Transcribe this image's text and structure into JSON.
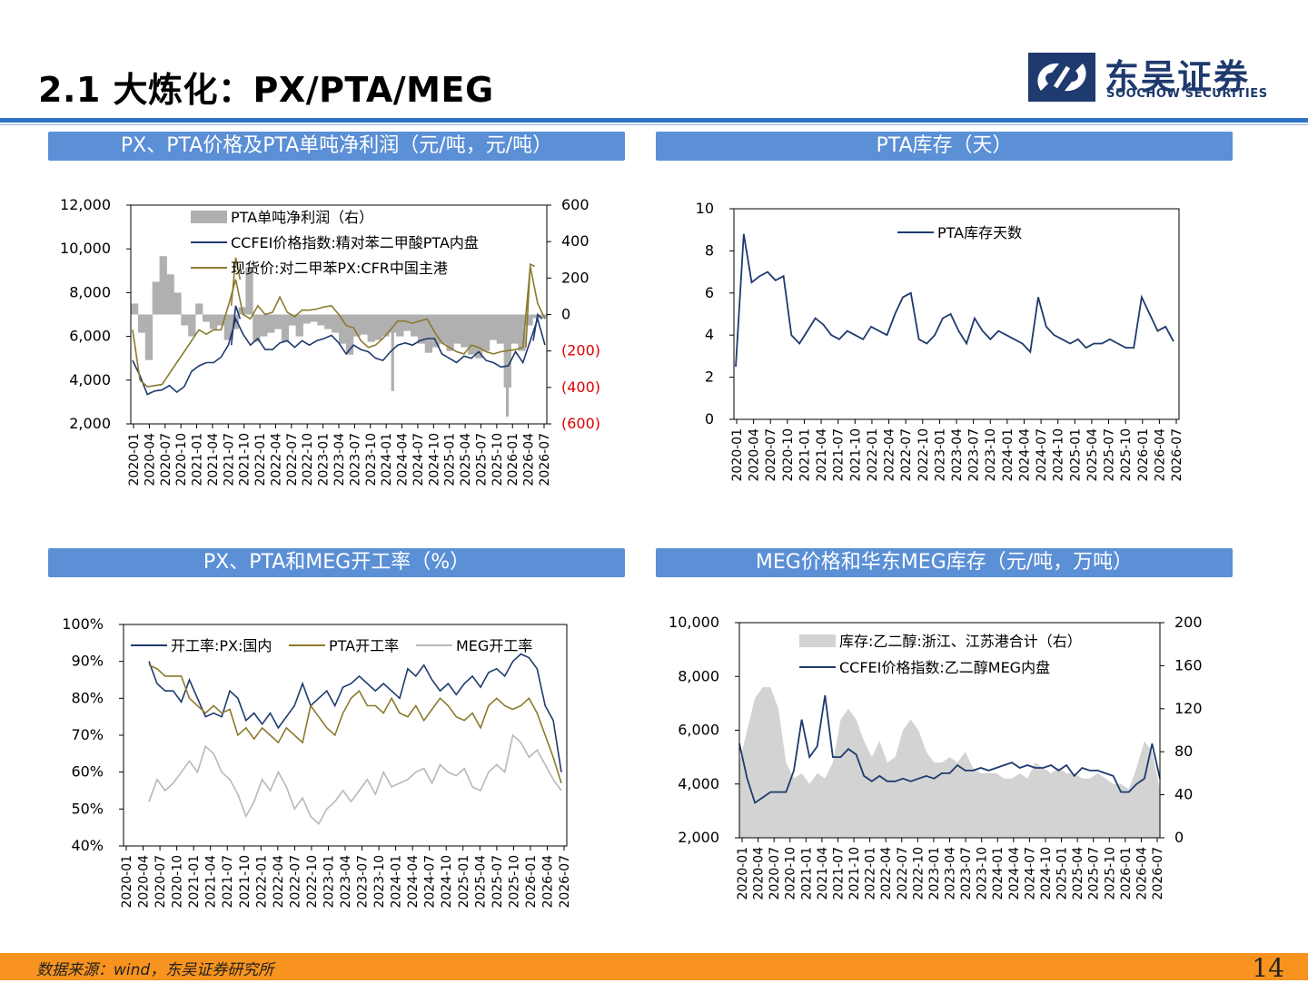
{
  "page": {
    "title": "2.1 大炼化：PX/PTA/MEG",
    "logo_cn": "东吴证券",
    "logo_en": "SOOCHOW SECURITIES",
    "source": "数据来源：wind，东吴证券研究所",
    "page_number": "14",
    "colors": {
      "rule": "#2f72c4",
      "header": "#5b8fd6",
      "footer": "#f7931e",
      "navy": "#1f3a6e"
    }
  },
  "chart_data": [
    {
      "type": "line",
      "title": "PX、PTA价格及PTA单吨净利润（元/吨，元/吨）",
      "x_ticks": [
        "2020-01",
        "2020-04",
        "2020-07",
        "2020-10",
        "2021-01",
        "2021-04",
        "2021-07",
        "2021-10",
        "2022-01",
        "2022-04",
        "2022-07",
        "2022-10",
        "2023-01",
        "2023-04",
        "2023-07",
        "2023-10",
        "2024-01",
        "2024-04",
        "2024-07",
        "2024-10",
        "2025-01",
        "2025-04",
        "2025-07",
        "2025-10",
        "2026-01",
        "2026-04",
        "2026-07"
      ],
      "y_left": {
        "min": 2000,
        "max": 12000,
        "ticks": [
          "12,000",
          "10,000",
          "8,000",
          "6,000",
          "4,000",
          "2,000"
        ]
      },
      "y_right": {
        "min": -600,
        "max": 600,
        "ticks": [
          "600",
          "400",
          "200",
          "0",
          "(200)",
          "(400)",
          "(600)"
        ],
        "negative_color": "#e00000"
      },
      "series": [
        {
          "name": "PTA单吨净利润（右）",
          "kind": "bar",
          "axis": "right",
          "color": "#b0b0b0",
          "values": [
            60,
            -100,
            -250,
            180,
            320,
            220,
            120,
            -60,
            -120,
            60,
            -40,
            -80,
            -60,
            -140,
            -80,
            40,
            260,
            -150,
            -120,
            -100,
            -80,
            -150,
            -60,
            -120,
            -50,
            -40,
            -60,
            -80,
            -100,
            -160,
            -220,
            -120,
            -110,
            -150,
            -140,
            -120,
            -100,
            -120,
            -90,
            -120,
            -160,
            -210,
            -180,
            -160,
            -200,
            -160,
            -180,
            -220,
            -240,
            -200,
            -140,
            -160,
            -400,
            -160,
            -200,
            -60,
            -20,
            -20
          ],
          "spikes": [
            {
              "i": 16,
              "v": 260
            },
            {
              "i": 36,
              "v": -420
            },
            {
              "i": 52,
              "v": -560
            }
          ]
        },
        {
          "name": "CCFEI价格指数:精对苯二甲酸PTA内盘",
          "kind": "line",
          "axis": "left",
          "color": "#1f3a6e",
          "values": [
            4900,
            4200,
            3350,
            3500,
            3550,
            3750,
            3450,
            3700,
            4400,
            4650,
            4800,
            4800,
            5050,
            5600,
            6800,
            6100,
            5600,
            5900,
            5400,
            5400,
            5700,
            5800,
            5500,
            5800,
            5600,
            5800,
            5900,
            6050,
            5700,
            5200,
            5600,
            5400,
            5300,
            5000,
            4900,
            5300,
            5600,
            5700,
            5600,
            5800,
            5900,
            5900,
            5200,
            5000,
            4800,
            5100,
            5000,
            5300,
            4900,
            4800,
            4600,
            4650,
            5300,
            4800,
            5800,
            6800,
            5600
          ],
          "peaks": [
            {
              "i": 14,
              "v": 7400
            },
            {
              "i": 55,
              "v": 7000
            }
          ]
        },
        {
          "name": "现货价:对二甲苯PX:CFR中国主港",
          "kind": "line",
          "axis": "left",
          "color": "#8b7a2e",
          "values": [
            6300,
            4000,
            3700,
            3750,
            3800,
            4300,
            4800,
            5300,
            5800,
            6300,
            6100,
            6300,
            6300,
            7400,
            8600,
            7000,
            6800,
            7400,
            7000,
            7100,
            7800,
            7100,
            6900,
            7200,
            7200,
            7250,
            7350,
            7400,
            7000,
            6500,
            6400,
            5800,
            5500,
            5600,
            5900,
            6300,
            6700,
            6700,
            6600,
            6700,
            6800,
            6200,
            5700,
            5500,
            5300,
            5200,
            5600,
            5500,
            5300,
            5200,
            5300,
            5350,
            5400,
            5500,
            9200,
            7500,
            6800
          ],
          "peaks": [
            {
              "i": 14,
              "v": 9600
            },
            {
              "i": 54,
              "v": 9300
            }
          ]
        }
      ],
      "legend": "top-left"
    },
    {
      "type": "line",
      "title": "PTA库存（天）",
      "x_ticks": [
        "2020-01",
        "2020-04",
        "2020-07",
        "2020-10",
        "2021-01",
        "2021-04",
        "2021-07",
        "2021-10",
        "2022-01",
        "2022-04",
        "2022-07",
        "2022-10",
        "2023-01",
        "2023-04",
        "2023-07",
        "2023-10",
        "2024-01",
        "2024-04",
        "2024-07",
        "2024-10",
        "2025-01",
        "2025-04",
        "2025-07",
        "2025-10",
        "2026-01",
        "2026-04",
        "2026-07"
      ],
      "y": {
        "min": 0,
        "max": 10,
        "ticks": [
          "10",
          "8",
          "6",
          "4",
          "2",
          "0"
        ]
      },
      "series": [
        {
          "name": "PTA库存天数",
          "color": "#1f3a6e",
          "values": [
            2.5,
            8.8,
            6.5,
            6.8,
            7.0,
            6.6,
            6.8,
            4.0,
            3.6,
            4.2,
            4.8,
            4.5,
            4.0,
            3.8,
            4.2,
            4.0,
            3.8,
            4.4,
            4.2,
            4.0,
            5.0,
            5.8,
            6.0,
            3.8,
            3.6,
            4.0,
            4.8,
            5.0,
            4.2,
            3.6,
            4.8,
            4.2,
            3.8,
            4.2,
            4.0,
            3.8,
            3.6,
            3.2,
            5.8,
            4.4,
            4.0,
            3.8,
            3.6,
            3.8,
            3.4,
            3.6,
            3.6,
            3.8,
            3.6,
            3.4,
            3.4,
            5.8,
            5.0,
            4.2,
            4.4,
            3.7
          ]
        }
      ],
      "legend": "top"
    },
    {
      "type": "line",
      "title": "PX、PTA和MEG开工率（%）",
      "x_ticks": [
        "2020-01",
        "2020-04",
        "2020-07",
        "2020-10",
        "2021-01",
        "2021-04",
        "2021-07",
        "2021-10",
        "2022-01",
        "2022-04",
        "2022-07",
        "2022-10",
        "2023-01",
        "2023-04",
        "2023-07",
        "2023-10",
        "2024-01",
        "2024-04",
        "2024-07",
        "2024-10",
        "2025-01",
        "2025-04",
        "2025-07",
        "2025-10",
        "2026-01",
        "2026-04",
        "2026-07"
      ],
      "y": {
        "min": 40,
        "max": 100,
        "ticks": [
          "100%",
          "90%",
          "80%",
          "70%",
          "60%",
          "50%",
          "40%"
        ]
      },
      "series": [
        {
          "name": "开工率:PX:国内",
          "color": "#1f3a6e",
          "values": [
            90,
            84,
            82,
            82,
            79,
            85,
            80,
            75,
            76,
            75,
            82,
            80,
            74,
            76,
            73,
            76,
            72,
            75,
            78,
            84,
            78,
            80,
            82,
            78,
            83,
            84,
            86,
            84,
            82,
            84,
            82,
            80,
            88,
            86,
            89,
            85,
            82,
            84,
            81,
            84,
            86,
            83,
            87,
            88,
            86,
            90,
            92,
            91,
            88,
            78,
            74,
            60
          ]
        },
        {
          "name": "PTA开工率",
          "color": "#8b7a2e",
          "values": [
            89,
            88,
            86,
            86,
            86,
            80,
            78,
            76,
            78,
            76,
            77,
            70,
            72,
            69,
            72,
            70,
            68,
            72,
            70,
            68,
            78,
            75,
            72,
            70,
            76,
            80,
            82,
            78,
            78,
            76,
            80,
            76,
            75,
            78,
            74,
            77,
            80,
            78,
            75,
            74,
            76,
            72,
            78,
            80,
            78,
            77,
            78,
            80,
            76,
            70,
            64,
            57
          ]
        },
        {
          "name": "MEG开工率",
          "color": "#b8b8b8",
          "values": [
            52,
            58,
            55,
            57,
            60,
            63,
            60,
            67,
            65,
            60,
            58,
            54,
            48,
            52,
            58,
            55,
            60,
            56,
            50,
            53,
            48,
            46,
            50,
            52,
            55,
            52,
            55,
            58,
            54,
            60,
            56,
            57,
            58,
            60,
            61,
            57,
            62,
            60,
            59,
            61,
            56,
            55,
            60,
            62,
            60,
            70,
            68,
            64,
            66,
            62,
            58,
            55
          ]
        }
      ],
      "legend": "top"
    },
    {
      "type": "line",
      "title": "MEG价格和华东MEG库存（元/吨，万吨）",
      "x_ticks": [
        "2020-01",
        "2020-04",
        "2020-07",
        "2020-10",
        "2021-01",
        "2021-04",
        "2021-07",
        "2021-10",
        "2022-01",
        "2022-04",
        "2022-07",
        "2022-10",
        "2023-01",
        "2023-04",
        "2023-07",
        "2023-10",
        "2024-01",
        "2024-04",
        "2024-07",
        "2024-10",
        "2025-01",
        "2025-04",
        "2025-07",
        "2025-10",
        "2026-01",
        "2026-04",
        "2026-07"
      ],
      "y_left": {
        "min": 2000,
        "max": 10000,
        "ticks": [
          "10,000",
          "8,000",
          "6,000",
          "4,000",
          "2,000"
        ]
      },
      "y_right": {
        "min": 0,
        "max": 200,
        "ticks": [
          "200",
          "160",
          "120",
          "80",
          "40",
          "0"
        ]
      },
      "series": [
        {
          "name": "库存:乙二醇:浙江、江苏港合计（右）",
          "kind": "area",
          "axis": "right",
          "color": "#d3d3d3",
          "values": [
            70,
            100,
            130,
            140,
            140,
            120,
            70,
            55,
            60,
            50,
            60,
            55,
            70,
            110,
            120,
            110,
            90,
            75,
            90,
            70,
            75,
            100,
            110,
            100,
            80,
            70,
            70,
            75,
            70,
            80,
            65,
            60,
            60,
            60,
            55,
            55,
            60,
            55,
            70,
            65,
            60,
            65,
            60,
            60,
            55,
            55,
            60,
            55,
            50,
            50,
            45,
            65,
            90,
            80,
            45
          ]
        },
        {
          "name": "CCFEI价格指数:乙二醇MEG内盘",
          "kind": "line",
          "axis": "left",
          "color": "#1f3a6e",
          "values": [
            5500,
            4200,
            3300,
            3500,
            3700,
            3700,
            3700,
            4500,
            6400,
            5000,
            5400,
            7300,
            5000,
            5000,
            5300,
            5100,
            4300,
            4100,
            4300,
            4100,
            4100,
            4200,
            4100,
            4200,
            4300,
            4200,
            4400,
            4400,
            4700,
            4500,
            4500,
            4600,
            4500,
            4600,
            4700,
            4800,
            4600,
            4700,
            4600,
            4600,
            4700,
            4500,
            4700,
            4300,
            4600,
            4500,
            4500,
            4400,
            4300,
            3700,
            3700,
            4000,
            4200,
            5500,
            4200
          ]
        }
      ],
      "legend": "top"
    }
  ]
}
